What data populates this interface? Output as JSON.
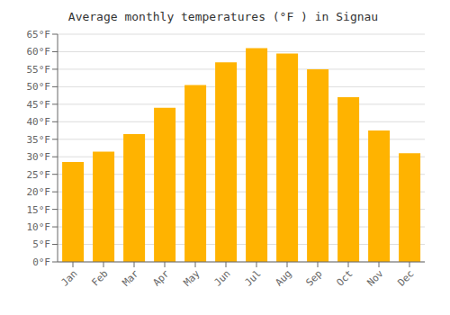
{
  "chart_data": {
    "type": "bar",
    "title": "Average monthly temperatures (°F ) in Signau",
    "categories": [
      "Jan",
      "Feb",
      "Mar",
      "Apr",
      "May",
      "Jun",
      "Jul",
      "Aug",
      "Sep",
      "Oct",
      "Nov",
      "Dec"
    ],
    "values": [
      28.5,
      31.5,
      36.5,
      44.0,
      50.5,
      57.0,
      61.0,
      59.5,
      55.0,
      47.0,
      37.5,
      31.0
    ],
    "color": "#FFB300",
    "ylim": [
      0,
      65
    ],
    "yticks": [
      {
        "value": 0,
        "label": "0°F"
      },
      {
        "value": 5,
        "label": "5°F"
      },
      {
        "value": 10,
        "label": "10°F"
      },
      {
        "value": 15,
        "label": "15°F"
      },
      {
        "value": 20,
        "label": "20°F"
      },
      {
        "value": 25,
        "label": "25°F"
      },
      {
        "value": 30,
        "label": "30°F"
      },
      {
        "value": 35,
        "label": "35°F"
      },
      {
        "value": 40,
        "label": "40°F"
      },
      {
        "value": 45,
        "label": "45°F"
      },
      {
        "value": 50,
        "label": "50°F"
      },
      {
        "value": 55,
        "label": "55°F"
      },
      {
        "value": 60,
        "label": "60°F"
      },
      {
        "value": 65,
        "label": "65°F"
      }
    ],
    "grid": true
  }
}
